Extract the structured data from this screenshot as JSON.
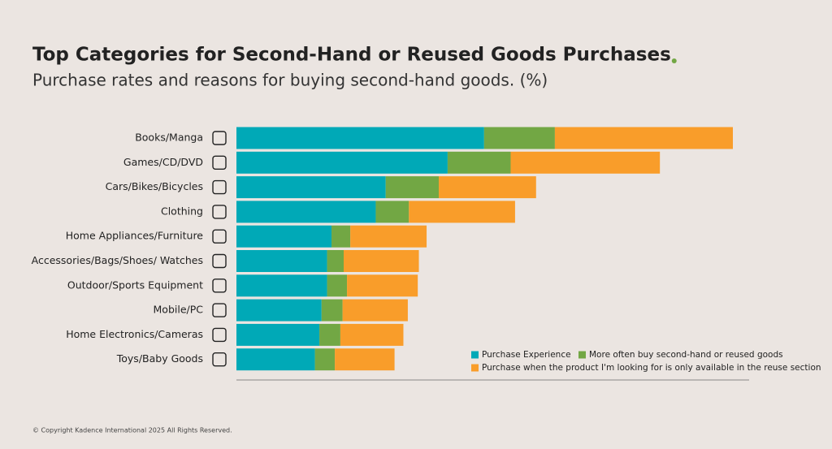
{
  "chart_data": {
    "type": "stacked_barh",
    "title": "Top Categories for Second-Hand or Reused Goods Purchases",
    "subtitle": "Purchase rates and reasons for buying second-hand goods. (%)",
    "footer": "© Copyright Kadence International 2025 All Rights Reserved.",
    "categories": [
      "Books/Manga",
      "Games/CD/DVD",
      "Cars/Bikes/Bicycles",
      "Clothing",
      "Home Appliances/Furniture",
      "Accessories/Bags/Shoes/ Watches",
      "Outdoor/Sports Equipment",
      "Mobile/PC",
      "Home Electronics/Cameras",
      "Toys/Baby Goods"
    ],
    "series": [
      {
        "name": "Purchase Experience",
        "color": "#00a9b7",
        "values": [
          22.4,
          19.1,
          13.5,
          12.6,
          8.6,
          8.2,
          8.2,
          7.7,
          7.5,
          7.1
        ]
      },
      {
        "name": "More often buy second-hand or reused goods",
        "color": "#72a744",
        "values": [
          6.4,
          5.7,
          4.8,
          3.0,
          1.7,
          1.5,
          1.8,
          1.9,
          1.9,
          1.8
        ]
      },
      {
        "name": "Purchase when the product I'm looking for is only available in the reuse section",
        "color": "#f99d2a",
        "values": [
          16.1,
          13.5,
          8.8,
          9.6,
          6.9,
          6.8,
          6.4,
          5.9,
          5.7,
          5.4
        ]
      }
    ],
    "legend": "lower right"
  }
}
